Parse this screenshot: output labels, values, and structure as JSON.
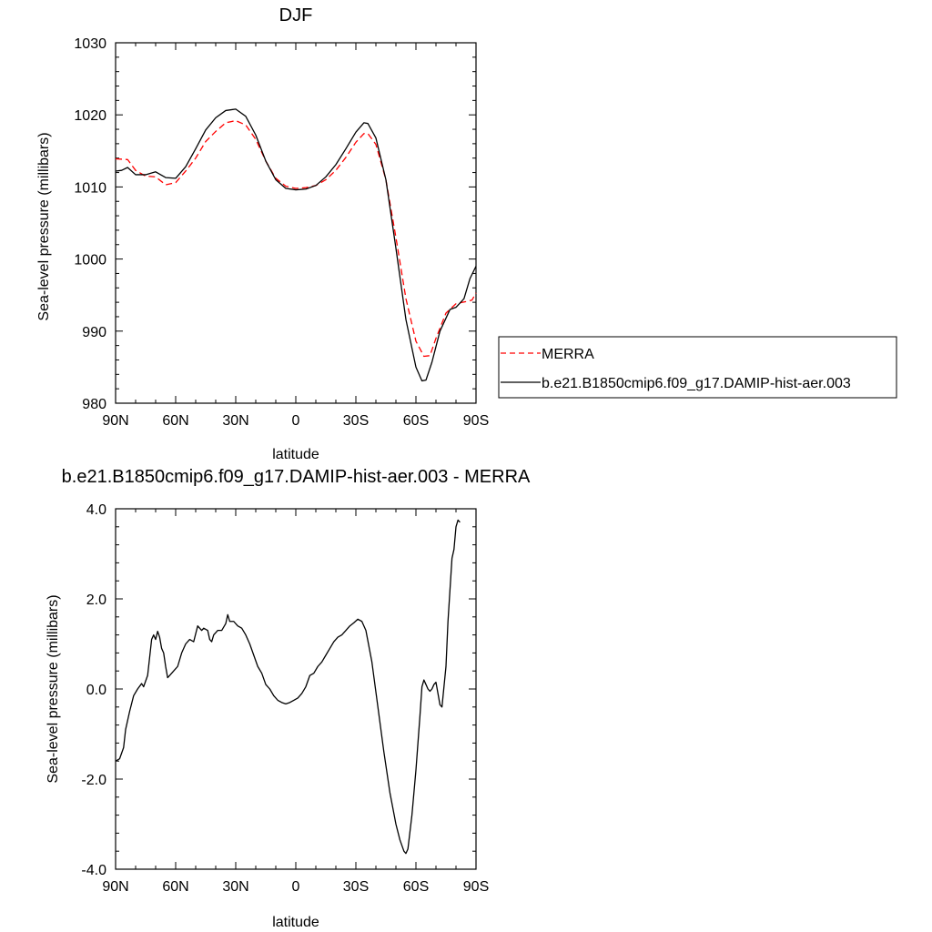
{
  "chart_data": [
    {
      "type": "line",
      "title": "DJF",
      "xlabel": "latitude",
      "ylabel": "Sea-level pressure (millibars)",
      "xlim": [
        90,
        -90
      ],
      "ylim": [
        980,
        1030
      ],
      "x_ticks": [
        {
          "value": 90,
          "label": "90N"
        },
        {
          "value": 60,
          "label": "60N"
        },
        {
          "value": 30,
          "label": "30N"
        },
        {
          "value": 0,
          "label": "0"
        },
        {
          "value": -30,
          "label": "30S"
        },
        {
          "value": -60,
          "label": "60S"
        },
        {
          "value": -90,
          "label": "90S"
        }
      ],
      "y_ticks": [
        {
          "value": 980,
          "label": "980"
        },
        {
          "value": 990,
          "label": "990"
        },
        {
          "value": 1000,
          "label": "1000"
        },
        {
          "value": 1010,
          "label": "1010"
        },
        {
          "value": 1020,
          "label": "1020"
        },
        {
          "value": 1030,
          "label": "1030"
        }
      ],
      "legend_position": "right",
      "series": [
        {
          "name": "MERRA",
          "color": "#ff0000",
          "dashed": true,
          "points": [
            [
              90,
              1013.9
            ],
            [
              84,
              1013.8
            ],
            [
              80,
              1012.3
            ],
            [
              75,
              1011.5
            ],
            [
              70,
              1011.4
            ],
            [
              65,
              1010.3
            ],
            [
              60,
              1010.6
            ],
            [
              55,
              1012.2
            ],
            [
              50,
              1014.0
            ],
            [
              45,
              1016.3
            ],
            [
              40,
              1017.7
            ],
            [
              35,
              1018.9
            ],
            [
              30,
              1019.2
            ],
            [
              25,
              1018.6
            ],
            [
              20,
              1016.6
            ],
            [
              15,
              1013.6
            ],
            [
              10,
              1011.2
            ],
            [
              5,
              1010.1
            ],
            [
              0,
              1009.8
            ],
            [
              -5,
              1009.9
            ],
            [
              -10,
              1010.2
            ],
            [
              -15,
              1011.0
            ],
            [
              -20,
              1012.3
            ],
            [
              -25,
              1014.1
            ],
            [
              -30,
              1016.2
            ],
            [
              -34,
              1017.4
            ],
            [
              -36,
              1017.4
            ],
            [
              -40,
              1015.9
            ],
            [
              -45,
              1011.0
            ],
            [
              -50,
              1003.0
            ],
            [
              -55,
              994.5
            ],
            [
              -60,
              988.6
            ],
            [
              -64,
              986.5
            ],
            [
              -67,
              986.6
            ],
            [
              -70,
              989.0
            ],
            [
              -75,
              992.5
            ],
            [
              -80,
              993.8
            ],
            [
              -85,
              994.1
            ],
            [
              -88,
              994.3
            ],
            [
              -90,
              995.3
            ]
          ]
        },
        {
          "name": "b.e21.B1850cmip6.f09_g17.DAMIP-hist-aer.003",
          "color": "#000000",
          "dashed": false,
          "points": [
            [
              90,
              1012.2
            ],
            [
              87,
              1012.3
            ],
            [
              84,
              1012.7
            ],
            [
              80,
              1011.7
            ],
            [
              75,
              1011.7
            ],
            [
              70,
              1012.1
            ],
            [
              65,
              1011.3
            ],
            [
              60,
              1011.2
            ],
            [
              55,
              1012.8
            ],
            [
              50,
              1015.3
            ],
            [
              45,
              1017.9
            ],
            [
              40,
              1019.6
            ],
            [
              35,
              1020.6
            ],
            [
              30,
              1020.8
            ],
            [
              25,
              1019.8
            ],
            [
              20,
              1017.2
            ],
            [
              15,
              1013.6
            ],
            [
              10,
              1011.0
            ],
            [
              5,
              1009.8
            ],
            [
              0,
              1009.6
            ],
            [
              -5,
              1009.7
            ],
            [
              -10,
              1010.2
            ],
            [
              -15,
              1011.4
            ],
            [
              -20,
              1013.1
            ],
            [
              -25,
              1015.3
            ],
            [
              -30,
              1017.6
            ],
            [
              -34,
              1018.9
            ],
            [
              -36,
              1018.8
            ],
            [
              -40,
              1016.8
            ],
            [
              -45,
              1011.0
            ],
            [
              -50,
              1001.5
            ],
            [
              -55,
              991.6
            ],
            [
              -60,
              985.0
            ],
            [
              -63,
              983.1
            ],
            [
              -65,
              983.2
            ],
            [
              -68,
              985.7
            ],
            [
              -72,
              990.0
            ],
            [
              -77,
              993.0
            ],
            [
              -80,
              993.3
            ],
            [
              -84,
              994.5
            ],
            [
              -87,
              997.3
            ],
            [
              -90,
              999.0
            ]
          ]
        }
      ]
    },
    {
      "type": "line",
      "title": "b.e21.B1850cmip6.f09_g17.DAMIP-hist-aer.003 - MERRA",
      "xlabel": "latitude",
      "ylabel": "Sea-level pressure (millibars)",
      "xlim": [
        90,
        -90
      ],
      "ylim": [
        -4.0,
        4.0
      ],
      "x_ticks": [
        {
          "value": 90,
          "label": "90N"
        },
        {
          "value": 60,
          "label": "60N"
        },
        {
          "value": 30,
          "label": "30N"
        },
        {
          "value": 0,
          "label": "0"
        },
        {
          "value": -30,
          "label": "30S"
        },
        {
          "value": -60,
          "label": "60S"
        },
        {
          "value": -90,
          "label": "90S"
        }
      ],
      "y_ticks": [
        {
          "value": -4.0,
          "label": "-4.0"
        },
        {
          "value": -2.0,
          "label": "-2.0"
        },
        {
          "value": 0.0,
          "label": "0.0"
        },
        {
          "value": 2.0,
          "label": "2.0"
        },
        {
          "value": 4.0,
          "label": "4.0"
        }
      ],
      "series": [
        {
          "color": "#000000",
          "dashed": false,
          "points": [
            [
              90,
              -1.6
            ],
            [
              88,
              -1.55
            ],
            [
              86,
              -1.3
            ],
            [
              85,
              -0.9
            ],
            [
              83,
              -0.5
            ],
            [
              81,
              -0.15
            ],
            [
              79,
              0.0
            ],
            [
              77,
              0.12
            ],
            [
              76,
              0.05
            ],
            [
              74,
              0.3
            ],
            [
              72,
              1.1
            ],
            [
              71,
              1.2
            ],
            [
              70,
              1.1
            ],
            [
              69,
              1.28
            ],
            [
              68,
              1.15
            ],
            [
              67,
              0.9
            ],
            [
              66,
              0.8
            ],
            [
              65,
              0.5
            ],
            [
              64,
              0.25
            ],
            [
              63,
              0.3
            ],
            [
              61,
              0.4
            ],
            [
              59,
              0.5
            ],
            [
              57,
              0.8
            ],
            [
              55,
              1.0
            ],
            [
              53,
              1.1
            ],
            [
              51,
              1.05
            ],
            [
              49,
              1.4
            ],
            [
              47,
              1.3
            ],
            [
              46,
              1.35
            ],
            [
              44,
              1.3
            ],
            [
              43,
              1.1
            ],
            [
              42,
              1.05
            ],
            [
              41,
              1.2
            ],
            [
              39,
              1.3
            ],
            [
              37,
              1.3
            ],
            [
              35,
              1.45
            ],
            [
              34,
              1.65
            ],
            [
              33,
              1.5
            ],
            [
              31,
              1.5
            ],
            [
              29,
              1.4
            ],
            [
              27,
              1.35
            ],
            [
              25,
              1.2
            ],
            [
              23,
              1.0
            ],
            [
              21,
              0.75
            ],
            [
              19,
              0.5
            ],
            [
              17,
              0.35
            ],
            [
              15,
              0.1
            ],
            [
              13,
              0.0
            ],
            [
              11,
              -0.15
            ],
            [
              9,
              -0.25
            ],
            [
              7,
              -0.3
            ],
            [
              5,
              -0.33
            ],
            [
              3,
              -0.3
            ],
            [
              1,
              -0.25
            ],
            [
              -1,
              -0.2
            ],
            [
              -3,
              -0.1
            ],
            [
              -5,
              0.05
            ],
            [
              -7,
              0.3
            ],
            [
              -9,
              0.35
            ],
            [
              -11,
              0.5
            ],
            [
              -13,
              0.6
            ],
            [
              -15,
              0.75
            ],
            [
              -17,
              0.9
            ],
            [
              -19,
              1.05
            ],
            [
              -21,
              1.15
            ],
            [
              -23,
              1.2
            ],
            [
              -25,
              1.3
            ],
            [
              -27,
              1.4
            ],
            [
              -29,
              1.47
            ],
            [
              -31,
              1.55
            ],
            [
              -33,
              1.5
            ],
            [
              -35,
              1.3
            ],
            [
              -38,
              0.6
            ],
            [
              -41,
              -0.4
            ],
            [
              -44,
              -1.4
            ],
            [
              -47,
              -2.3
            ],
            [
              -50,
              -3.0
            ],
            [
              -52,
              -3.35
            ],
            [
              -54,
              -3.6
            ],
            [
              -55,
              -3.65
            ],
            [
              -56,
              -3.55
            ],
            [
              -58,
              -2.8
            ],
            [
              -60,
              -1.8
            ],
            [
              -62,
              -0.6
            ],
            [
              -63,
              0.05
            ],
            [
              -64,
              0.2
            ],
            [
              -65,
              0.1
            ],
            [
              -66,
              0.0
            ],
            [
              -67,
              -0.05
            ],
            [
              -68,
              0.0
            ],
            [
              -69,
              0.1
            ],
            [
              -70,
              0.15
            ],
            [
              -71,
              -0.1
            ],
            [
              -72,
              -0.35
            ],
            [
              -73,
              -0.4
            ],
            [
              -75,
              0.5
            ],
            [
              -76,
              1.5
            ],
            [
              -78,
              2.9
            ],
            [
              -79,
              3.1
            ],
            [
              -80,
              3.6
            ],
            [
              -81,
              3.75
            ],
            [
              -82,
              3.7
            ]
          ]
        }
      ]
    }
  ]
}
